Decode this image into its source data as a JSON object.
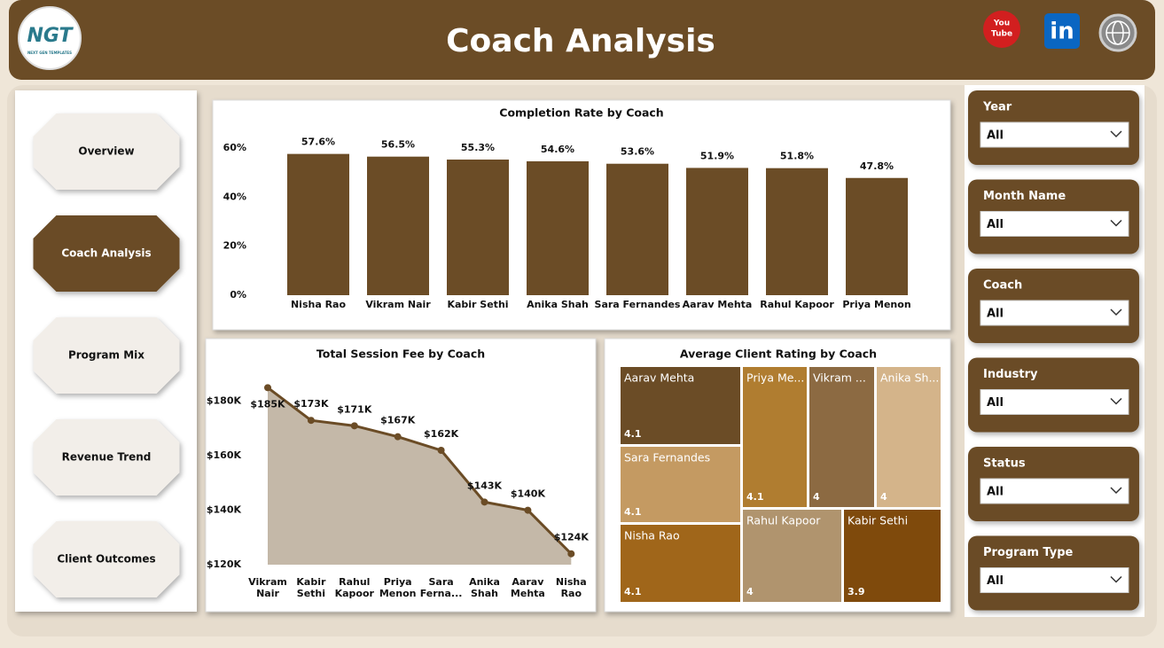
{
  "header": {
    "title": "Coach Analysis",
    "logo": "NGT",
    "logo_subtitle": "NEXT GEN TEMPLATES",
    "youtube": [
      "You",
      "Tube"
    ],
    "linkedin": "in"
  },
  "nav": {
    "items": [
      "Overview",
      "Coach Analysis",
      "Program Mix",
      "Revenue Trend",
      "Client Outcomes"
    ],
    "active": 1
  },
  "filters": [
    {
      "label": "Year",
      "value": "All"
    },
    {
      "label": "Month Name",
      "value": "All"
    },
    {
      "label": "Coach",
      "value": "All"
    },
    {
      "label": "Industry",
      "value": "All"
    },
    {
      "label": "Status",
      "value": "All"
    },
    {
      "label": "Program Type",
      "value": "All"
    }
  ],
  "chart_data": [
    {
      "type": "bar",
      "title": "Completion Rate by Coach",
      "categories": [
        "Nisha Rao",
        "Vikram Nair",
        "Kabir Sethi",
        "Anika Shah",
        "Sara Fernandes",
        "Aarav Mehta",
        "Rahul Kapoor",
        "Priya Menon"
      ],
      "values": [
        57.6,
        56.5,
        55.3,
        54.6,
        53.6,
        51.9,
        51.8,
        47.8
      ],
      "value_labels": [
        "57.6%",
        "56.5%",
        "55.3%",
        "54.6%",
        "53.6%",
        "51.9%",
        "51.8%",
        "47.8%"
      ],
      "color": "#6b4c26",
      "ylim": [
        0,
        60
      ],
      "yticks": [
        {
          "value": 0,
          "label": "0%"
        },
        {
          "value": 20,
          "label": "20%"
        },
        {
          "value": 40,
          "label": "40%"
        },
        {
          "value": 60,
          "label": "60%"
        }
      ]
    },
    {
      "type": "area",
      "title": "Total Session Fee by Coach",
      "categories": [
        "Vikram Nair",
        "Kabir Sethi",
        "Rahul Kapoor",
        "Priya Menon",
        "Sara Ferna...",
        "Anika Shah",
        "Aarav Mehta",
        "Nisha Rao"
      ],
      "values": [
        185000,
        173000,
        171000,
        167000,
        162000,
        143000,
        140000,
        124000
      ],
      "value_labels": [
        "$185K",
        "$173K",
        "$171K",
        "$167K",
        "$162K",
        "$143K",
        "$140K",
        "$124K"
      ],
      "color": "#6b4c26",
      "area_color": "#c4b8a8",
      "ylim": [
        120000,
        190000
      ],
      "yticks": [
        {
          "value": 120000,
          "label": "$120K"
        },
        {
          "value": 140000,
          "label": "$140K"
        },
        {
          "value": 160000,
          "label": "$160K"
        },
        {
          "value": 180000,
          "label": "$180K"
        }
      ]
    },
    {
      "type": "treemap",
      "title": "Average Client Rating by Coach",
      "categories": [
        "Aarav Mehta",
        "Priya Me...",
        "Vikram ...",
        "Anika Sh...",
        "Sara Fernandes",
        "Nisha Rao",
        "Rahul Kapoor",
        "Kabir Sethi"
      ],
      "values": [
        4.1,
        4.1,
        4.0,
        4.0,
        4.1,
        4.1,
        4.0,
        3.9
      ],
      "colors": [
        "#6b4c26",
        "#b07d30",
        "#8c6a42",
        "#d4b48a",
        "#c49a62",
        "#a0661a",
        "#b0946e",
        "#7f4a0c"
      ]
    }
  ]
}
